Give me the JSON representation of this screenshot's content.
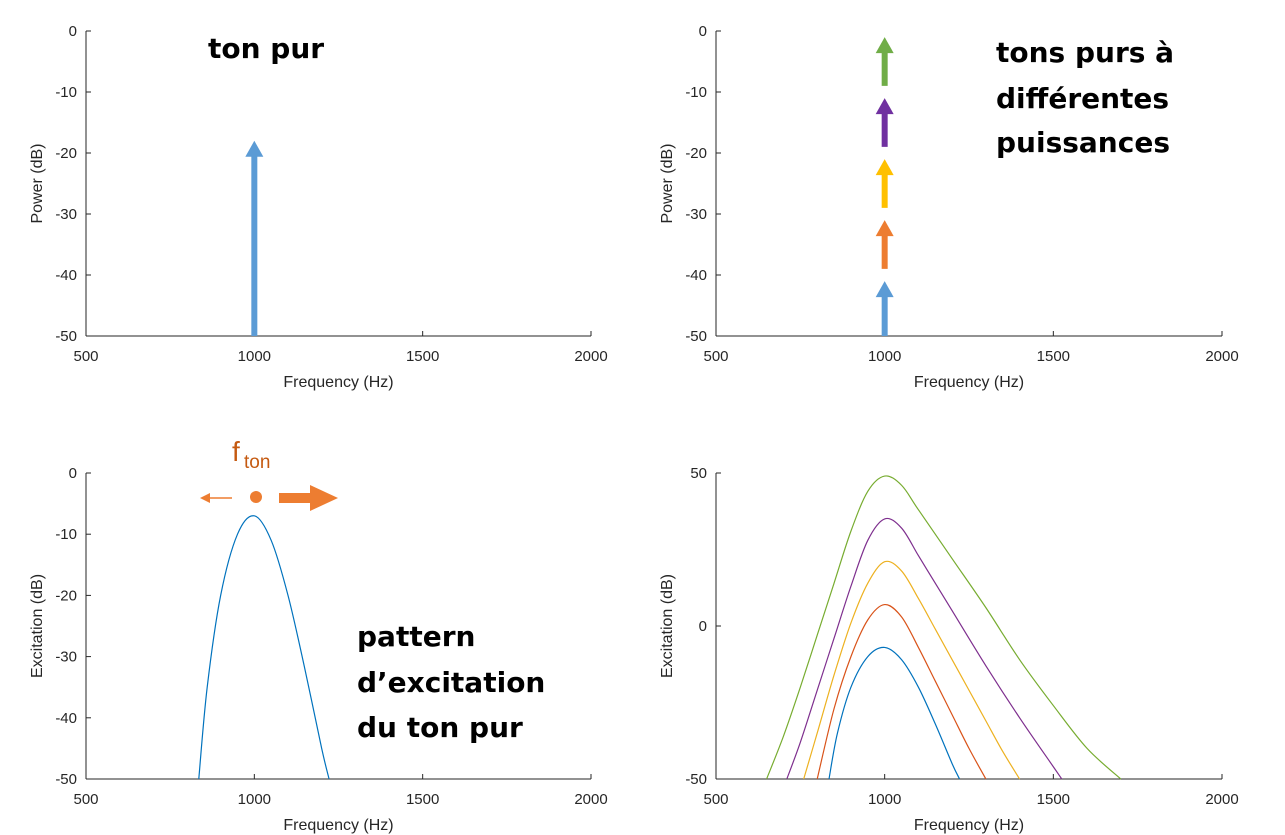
{
  "chart_data": [
    {
      "type": "stem",
      "title": "",
      "xlabel": "Frequency (Hz)",
      "ylabel": "Power (dB)",
      "xlim": [
        500,
        2000
      ],
      "ylim": [
        -50,
        0
      ],
      "xticks": [
        500,
        1000,
        1500,
        2000
      ],
      "yticks": [
        0,
        -10,
        -20,
        -30,
        -40,
        -50
      ],
      "grid": false,
      "annotations": [
        "ton pur"
      ],
      "series": [
        {
          "x": 1000,
          "y": -18,
          "color": "#5b9bd5"
        }
      ]
    },
    {
      "type": "stem",
      "title": "",
      "xlabel": "Frequency (Hz)",
      "ylabel": "Power (dB)",
      "xlim": [
        500,
        2000
      ],
      "ylim": [
        -50,
        0
      ],
      "xticks": [
        500,
        1000,
        1500,
        2000
      ],
      "yticks": [
        0,
        -10,
        -20,
        -30,
        -40,
        -50
      ],
      "grid": false,
      "annotations": [
        "tons purs à",
        "différentes",
        "puissances"
      ],
      "series": [
        {
          "x": 1000,
          "y": -41,
          "color": "#5b9bd5"
        },
        {
          "x": 1000,
          "y": -31,
          "color": "#ed7d31"
        },
        {
          "x": 1000,
          "y": -21,
          "color": "#ffc000"
        },
        {
          "x": 1000,
          "y": -11,
          "color": "#7030a0"
        },
        {
          "x": 1000,
          "y": -1,
          "color": "#70ad47"
        }
      ]
    },
    {
      "type": "line",
      "title": "",
      "xlabel": "Frequency (Hz)",
      "ylabel": "Excitation (dB)",
      "xlim": [
        500,
        2000
      ],
      "ylim": [
        -50,
        0
      ],
      "xticks": [
        500,
        1000,
        1500,
        2000
      ],
      "yticks": [
        0,
        -10,
        -20,
        -30,
        -40,
        -50
      ],
      "grid": false,
      "annotations": [
        "pattern",
        "d’excitation",
        "du ton pur"
      ],
      "tone_marker": {
        "label": "f",
        "subscript": "ton"
      },
      "series": [
        {
          "color": "#0072bd",
          "x": [
            835,
            860,
            900,
            950,
            1000,
            1050,
            1100,
            1150,
            1200,
            1222
          ],
          "y": [
            -50,
            -35,
            -20,
            -10,
            -7,
            -11,
            -20,
            -32,
            -45,
            -50
          ]
        }
      ]
    },
    {
      "type": "line",
      "title": "",
      "xlabel": "Frequency (Hz)",
      "ylabel": "Excitation (dB)",
      "xlim": [
        500,
        2000
      ],
      "ylim": [
        -50,
        50
      ],
      "xticks": [
        500,
        1000,
        1500,
        2000
      ],
      "yticks": [
        50,
        0,
        -50
      ],
      "grid": false,
      "annotations": [],
      "series": [
        {
          "color": "#0072bd",
          "x": [
            835,
            860,
            900,
            950,
            1000,
            1050,
            1100,
            1150,
            1200,
            1222
          ],
          "y": [
            -50,
            -35,
            -20,
            -10,
            -7,
            -11,
            -20,
            -32,
            -45,
            -50
          ]
        },
        {
          "color": "#d95319",
          "x": [
            800,
            850,
            900,
            950,
            1000,
            1050,
            1100,
            1150,
            1200,
            1250,
            1300
          ],
          "y": [
            -50,
            -27,
            -10,
            2,
            7,
            3,
            -7,
            -18,
            -29,
            -40,
            -50
          ]
        },
        {
          "color": "#edb120",
          "x": [
            760,
            800,
            850,
            900,
            950,
            1000,
            1050,
            1100,
            1150,
            1200,
            1250,
            1300,
            1350,
            1400
          ],
          "y": [
            -50,
            -35,
            -16,
            1,
            14,
            21,
            18,
            9,
            -1,
            -11,
            -21,
            -31,
            -41,
            -50
          ]
        },
        {
          "color": "#7e2f8e",
          "x": [
            710,
            750,
            800,
            850,
            900,
            950,
            1000,
            1050,
            1100,
            1150,
            1200,
            1300,
            1400,
            1500,
            1525
          ],
          "y": [
            -50,
            -38,
            -21,
            -4,
            13,
            28,
            35,
            32,
            23,
            14,
            5,
            -13,
            -30,
            -46,
            -50
          ]
        },
        {
          "color": "#77ac30",
          "x": [
            650,
            700,
            750,
            800,
            850,
            900,
            950,
            1000,
            1050,
            1100,
            1200,
            1300,
            1400,
            1500,
            1600,
            1700
          ],
          "y": [
            -50,
            -36,
            -20,
            -3,
            14,
            31,
            44,
            49,
            46,
            38,
            22,
            6,
            -11,
            -26,
            -40,
            -50
          ]
        }
      ]
    }
  ]
}
